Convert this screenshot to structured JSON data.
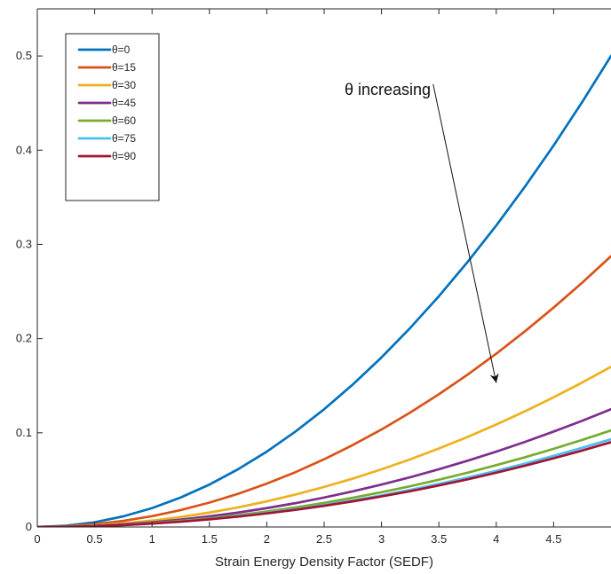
{
  "chart_data": {
    "type": "line",
    "title": "",
    "xlabel": "Strain Energy Density Factor (SEDF)",
    "ylabel": "",
    "xlim": [
      0,
      5
    ],
    "ylim": [
      0,
      0.55
    ],
    "xticks": [
      0,
      0.5,
      1,
      1.5,
      2,
      2.5,
      3,
      3.5,
      4,
      4.5
    ],
    "xtick_labels": [
      "0",
      "0.5",
      "1",
      "1.5",
      "2",
      "2.5",
      "3",
      "3.5",
      "4",
      "4.5"
    ],
    "yticks": [
      0,
      0.1,
      0.2,
      0.3,
      0.4,
      0.5
    ],
    "ytick_labels": [
      "0",
      "0.1",
      "0.2",
      "0.3",
      "0.4",
      "0.5"
    ],
    "grid": false,
    "legend_position": "top-left",
    "annotation": {
      "text": "θ increasing",
      "arrow_from": [
        3.45,
        0.47
      ],
      "arrow_to": [
        4.0,
        0.153
      ]
    },
    "x": [
      0,
      0.25,
      0.5,
      0.75,
      1,
      1.25,
      1.5,
      1.75,
      2,
      2.25,
      2.5,
      2.75,
      3,
      3.25,
      3.5,
      3.75,
      4,
      4.25,
      4.5,
      4.75,
      5
    ],
    "series": [
      {
        "name": "θ=0",
        "color": "#0072BD",
        "values": [
          0,
          0.0013,
          0.005,
          0.0113,
          0.02,
          0.0313,
          0.045,
          0.0613,
          0.08,
          0.1013,
          0.125,
          0.1513,
          0.18,
          0.2113,
          0.245,
          0.2813,
          0.32,
          0.3613,
          0.405,
          0.4513,
          0.5
        ]
      },
      {
        "name": "θ=15",
        "color": "#D95319",
        "values": [
          0,
          0.0007,
          0.0029,
          0.0065,
          0.0115,
          0.018,
          0.0259,
          0.0352,
          0.046,
          0.0582,
          0.0719,
          0.087,
          0.1035,
          0.1215,
          0.1409,
          0.1617,
          0.184,
          0.2077,
          0.2329,
          0.2595,
          0.2875
        ]
      },
      {
        "name": "θ=30",
        "color": "#EDB120",
        "values": [
          0,
          0.0004,
          0.0017,
          0.0038,
          0.0068,
          0.0106,
          0.0153,
          0.0208,
          0.0272,
          0.0344,
          0.0425,
          0.0514,
          0.0612,
          0.0718,
          0.0833,
          0.0956,
          0.1088,
          0.1228,
          0.1377,
          0.1534,
          0.17
        ]
      },
      {
        "name": "θ=45",
        "color": "#7E2F8E",
        "values": [
          0,
          0.0003,
          0.0012,
          0.0028,
          0.005,
          0.0078,
          0.0113,
          0.0153,
          0.02,
          0.0253,
          0.0313,
          0.0378,
          0.045,
          0.0528,
          0.0613,
          0.0703,
          0.08,
          0.0903,
          0.1013,
          0.1128,
          0.125
        ]
      },
      {
        "name": "θ=60",
        "color": "#77AC30",
        "values": [
          0,
          0.0003,
          0.001,
          0.0023,
          0.0041,
          0.0064,
          0.0092,
          0.0125,
          0.0164,
          0.0207,
          0.0256,
          0.031,
          0.0369,
          0.0433,
          0.0502,
          0.0576,
          0.0656,
          0.074,
          0.083,
          0.0925,
          0.1025
        ]
      },
      {
        "name": "θ=75",
        "color": "#4DBEEE",
        "values": [
          0,
          0.0002,
          0.0009,
          0.0021,
          0.0037,
          0.0058,
          0.0084,
          0.0114,
          0.0149,
          0.0189,
          0.0233,
          0.0282,
          0.0335,
          0.0394,
          0.0457,
          0.0524,
          0.0596,
          0.0673,
          0.0755,
          0.0841,
          0.0932
        ]
      },
      {
        "name": "θ=90",
        "color": "#A2142F",
        "values": [
          0,
          0.0002,
          0.0009,
          0.002,
          0.0036,
          0.0056,
          0.0081,
          0.011,
          0.0144,
          0.0182,
          0.0225,
          0.0272,
          0.0324,
          0.038,
          0.0441,
          0.0506,
          0.0576,
          0.065,
          0.0729,
          0.0812,
          0.09
        ]
      }
    ]
  }
}
